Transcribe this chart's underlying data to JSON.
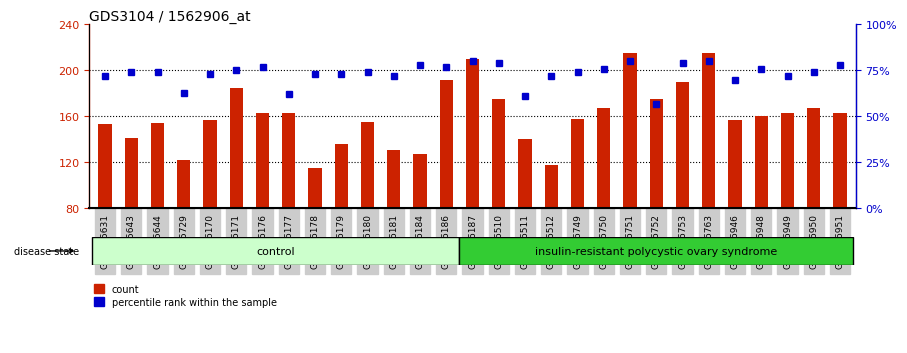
{
  "title": "GDS3104 / 1562906_at",
  "samples": [
    "GSM155631",
    "GSM155643",
    "GSM155644",
    "GSM155729",
    "GSM156170",
    "GSM156171",
    "GSM156176",
    "GSM156177",
    "GSM156178",
    "GSM156179",
    "GSM156180",
    "GSM156181",
    "GSM156184",
    "GSM156186",
    "GSM156187",
    "GSM156510",
    "GSM156511",
    "GSM156512",
    "GSM156749",
    "GSM156750",
    "GSM156751",
    "GSM156752",
    "GSM156753",
    "GSM156763",
    "GSM156946",
    "GSM156948",
    "GSM156949",
    "GSM156950",
    "GSM156951"
  ],
  "counts": [
    153,
    141,
    154,
    122,
    157,
    185,
    163,
    163,
    115,
    136,
    155,
    131,
    127,
    192,
    210,
    175,
    140,
    118,
    158,
    167,
    215,
    175,
    190,
    215,
    157,
    160,
    163,
    167,
    163
  ],
  "percentile_ranks": [
    72,
    74,
    74,
    63,
    73,
    75,
    77,
    62,
    73,
    73,
    74,
    72,
    78,
    77,
    80,
    79,
    61,
    72,
    74,
    76,
    80,
    57,
    79,
    80,
    70,
    76,
    72,
    74,
    78
  ],
  "group_labels": [
    "control",
    "insulin-resistant polycystic ovary syndrome"
  ],
  "group_sizes": [
    14,
    15
  ],
  "ylim_left": [
    80,
    240
  ],
  "ylim_right": [
    0,
    100
  ],
  "yticks_left": [
    80,
    120,
    160,
    200,
    240
  ],
  "yticks_right": [
    0,
    25,
    50,
    75,
    100
  ],
  "bar_color": "#cc2200",
  "dot_color": "#0000cc",
  "bg_color_control": "#ccffcc",
  "bg_color_disease": "#33cc33",
  "label_bg_color": "#cccccc",
  "spine_color": "#000000",
  "grid_color": "#000000"
}
